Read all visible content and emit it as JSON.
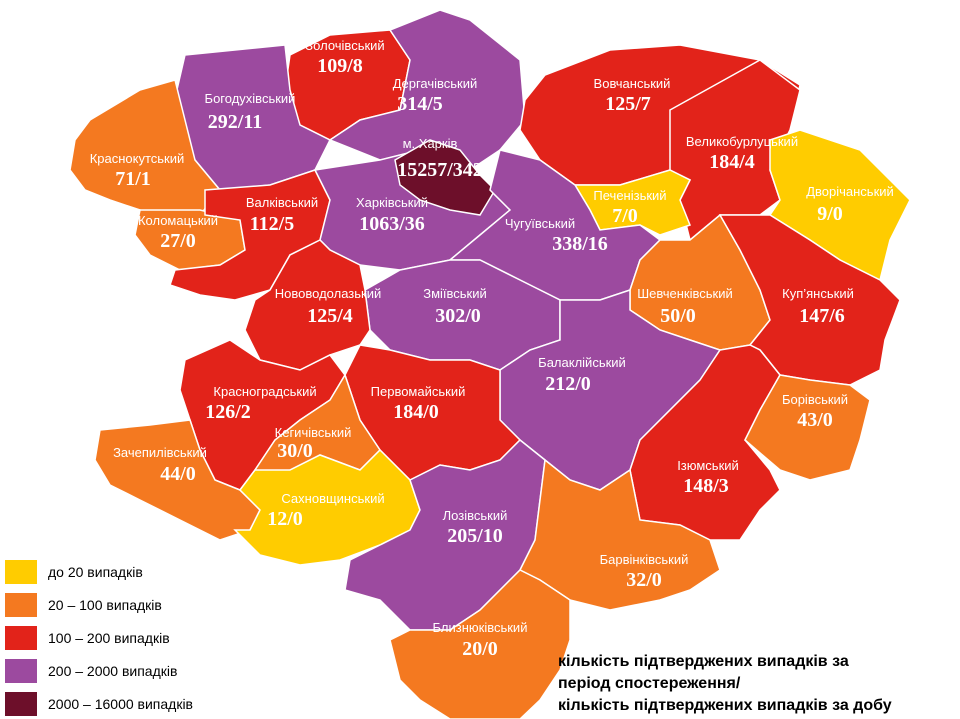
{
  "regions": [
    {
      "name": "Золочівський",
      "value": "109/8",
      "color": "#e2231a"
    },
    {
      "name": "Богодухівський",
      "value": "292/11",
      "color": "#9c4a9f"
    },
    {
      "name": "Дергачівський",
      "value": "314/5",
      "color": "#9c4a9f"
    },
    {
      "name": "Вовчанський",
      "value": "125/7",
      "color": "#e2231a"
    },
    {
      "name": "Великобурлуцький",
      "value": "184/4",
      "color": "#e2231a"
    },
    {
      "name": "Дворічанський",
      "value": "9/0",
      "color": "#ffcc00"
    },
    {
      "name": "Печенізький",
      "value": "7/0",
      "color": "#ffcc00"
    },
    {
      "name": "Краснокутський",
      "value": "71/1",
      "color": "#f47920"
    },
    {
      "name": "Коломацький",
      "value": "27/0",
      "color": "#f47920"
    },
    {
      "name": "Валківський",
      "value": "112/5",
      "color": "#e2231a"
    },
    {
      "name": "Харківський",
      "value": "1063/36",
      "color": "#9c4a9f"
    },
    {
      "name": "м. Харків",
      "value": "15257/342",
      "color": "#6d0f2a"
    },
    {
      "name": "Чугуївський",
      "value": "338/16",
      "color": "#9c4a9f"
    },
    {
      "name": "Зміївський",
      "value": "302/0",
      "color": "#9c4a9f"
    },
    {
      "name": "Нововодолазький",
      "value": "125/4",
      "color": "#e2231a"
    },
    {
      "name": "Шевченківський",
      "value": "50/0",
      "color": "#f47920"
    },
    {
      "name": "Куп’янський",
      "value": "147/6",
      "color": "#e2231a"
    },
    {
      "name": "Балаклійський",
      "value": "212/0",
      "color": "#9c4a9f"
    },
    {
      "name": "Красноградський",
      "value": "126/2",
      "color": "#e2231a"
    },
    {
      "name": "Первомайський",
      "value": "184/0",
      "color": "#e2231a"
    },
    {
      "name": "Кегичівський",
      "value": "30/0",
      "color": "#f47920"
    },
    {
      "name": "Зачепилівський",
      "value": "44/0",
      "color": "#f47920"
    },
    {
      "name": "Сахновщинський",
      "value": "12/0",
      "color": "#ffcc00"
    },
    {
      "name": "Лозівський",
      "value": "205/10",
      "color": "#9c4a9f"
    },
    {
      "name": "Ізюмський",
      "value": "148/3",
      "color": "#e2231a"
    },
    {
      "name": "Борівський",
      "value": "43/0",
      "color": "#f47920"
    },
    {
      "name": "Барвінківський",
      "value": "32/0",
      "color": "#f47920"
    },
    {
      "name": "Близнюківський",
      "value": "20/0",
      "color": "#f47920"
    }
  ],
  "legend": [
    {
      "label": "до 20  випадків",
      "color": "#ffcc00"
    },
    {
      "label": "20 – 100  випадків",
      "color": "#f47920"
    },
    {
      "label": "100 – 200  випадків",
      "color": "#e2231a"
    },
    {
      "label": "200 – 2000  випадків",
      "color": "#9c4a9f"
    },
    {
      "label": "2000 – 16000  випадків",
      "color": "#6d0f2a"
    }
  ],
  "note": [
    "кількість підтверджених випадків за",
    "період спостереження/",
    "кількість підтверджених випадків за добу"
  ]
}
